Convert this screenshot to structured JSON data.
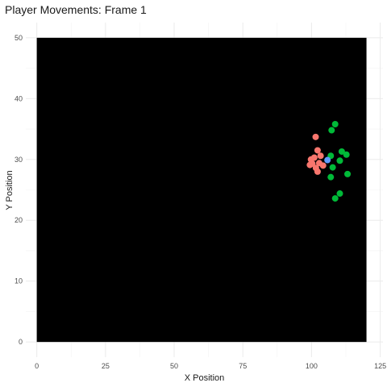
{
  "chart_data": {
    "type": "scatter",
    "title": "Player Movements: Frame 1",
    "xlabel": "X Position",
    "ylabel": "Y Position",
    "xlim": [
      -4,
      126
    ],
    "ylim": [
      -2.5,
      52.5
    ],
    "x_ticks": [
      0,
      25,
      50,
      75,
      100,
      125
    ],
    "y_ticks": [
      0,
      10,
      20,
      30,
      40,
      50
    ],
    "x_minor": [
      12.5,
      37.5,
      62.5,
      87.5,
      112.5
    ],
    "y_minor": [
      5,
      15,
      25,
      35,
      45
    ],
    "grid": true,
    "legend": "none",
    "field": {
      "x": [
        0,
        120
      ],
      "y": [
        0,
        50
      ],
      "color": "#000000"
    },
    "series": [
      {
        "color": "#F8766D",
        "points": [
          {
            "x": 101.5,
            "y": 33.7
          },
          {
            "x": 102.2,
            "y": 31.5
          },
          {
            "x": 99.8,
            "y": 30.0
          },
          {
            "x": 101.0,
            "y": 30.3
          },
          {
            "x": 103.3,
            "y": 30.6
          },
          {
            "x": 100.3,
            "y": 29.3
          },
          {
            "x": 99.4,
            "y": 29.1
          },
          {
            "x": 102.8,
            "y": 29.4
          },
          {
            "x": 101.6,
            "y": 28.6
          },
          {
            "x": 104.2,
            "y": 29.0
          },
          {
            "x": 102.2,
            "y": 28.0
          }
        ]
      },
      {
        "color": "#00BA38",
        "points": [
          {
            "x": 108.6,
            "y": 35.8
          },
          {
            "x": 107.3,
            "y": 34.8
          },
          {
            "x": 111.0,
            "y": 31.3
          },
          {
            "x": 112.7,
            "y": 30.8
          },
          {
            "x": 107.0,
            "y": 30.6
          },
          {
            "x": 110.3,
            "y": 29.8
          },
          {
            "x": 107.7,
            "y": 28.7
          },
          {
            "x": 113.1,
            "y": 27.6
          },
          {
            "x": 107.0,
            "y": 27.1
          },
          {
            "x": 110.3,
            "y": 24.4
          },
          {
            "x": 108.6,
            "y": 23.6
          }
        ]
      },
      {
        "color": "#619CFF",
        "points": [
          {
            "x": 105.8,
            "y": 29.9
          }
        ]
      }
    ]
  }
}
